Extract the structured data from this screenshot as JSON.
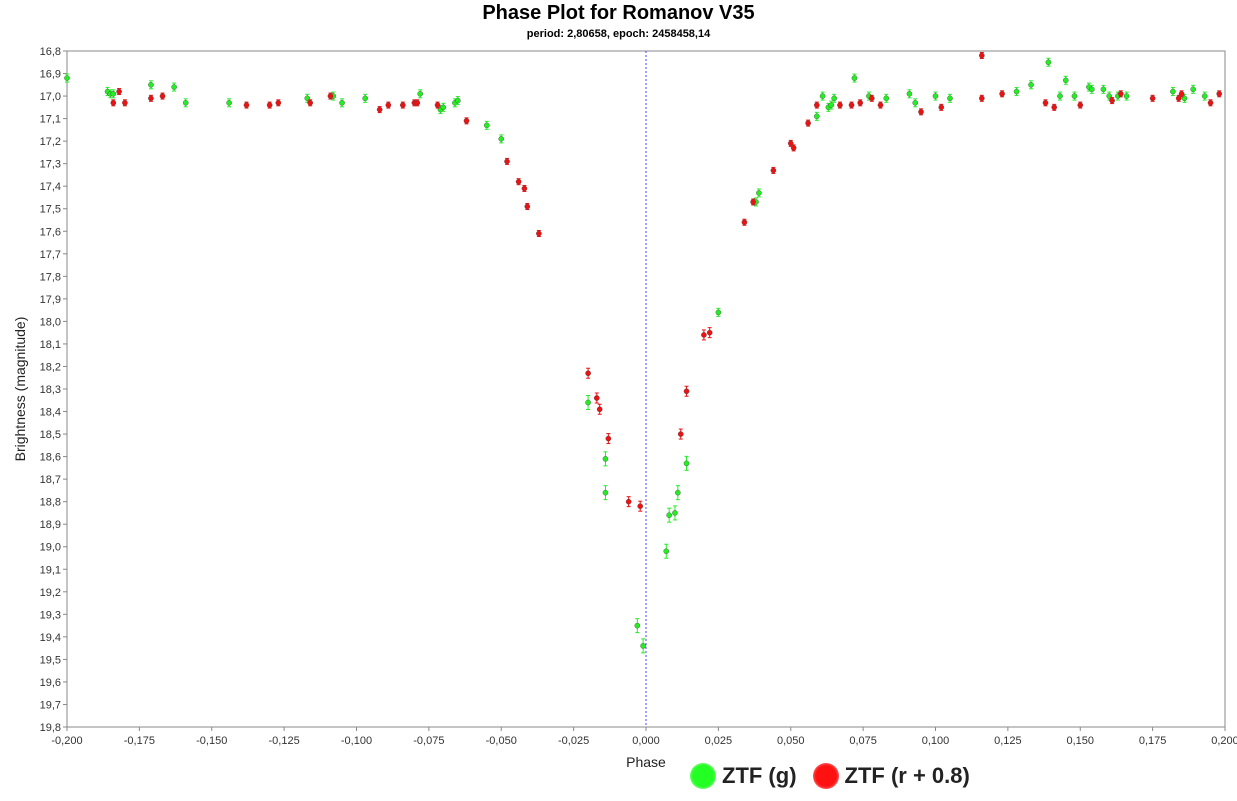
{
  "chart_data": {
    "type": "scatter",
    "title": "Phase Plot for Romanov V35",
    "subtitle": "period: 2,80658, epoch: 2458458,14",
    "xlabel": "Phase",
    "ylabel": "Brightness (magnitude)",
    "xlim": [
      -0.2,
      0.2
    ],
    "ylim": [
      16.8,
      19.8
    ],
    "y_inverted": true,
    "grid": false,
    "zero_line": "dashed-blue",
    "legend_placement": "bottom-center",
    "xticks": [
      "-0,200",
      "-0,175",
      "-0,150",
      "-0,125",
      "-0,100",
      "-0,075",
      "-0,050",
      "-0,025",
      "0,000",
      "0,025",
      "0,050",
      "0,075",
      "0,100",
      "0,125",
      "0,150",
      "0,175",
      "0,200"
    ],
    "yticks": [
      "16,8",
      "16,9",
      "17,0",
      "17,1",
      "17,2",
      "17,3",
      "17,4",
      "17,5",
      "17,6",
      "17,7",
      "17,8",
      "17,9",
      "18,0",
      "18,1",
      "18,2",
      "18,3",
      "18,4",
      "18,5",
      "18,6",
      "18,7",
      "18,8",
      "18,9",
      "19,0",
      "19,1",
      "19,2",
      "19,3",
      "19,4",
      "19,5",
      "19,6",
      "19,7",
      "19,8"
    ],
    "series": [
      {
        "name": "ZTF (g)",
        "color": "#22ee22",
        "points": [
          [
            -0.2,
            16.92
          ],
          [
            -0.186,
            16.98
          ],
          [
            -0.185,
            16.99
          ],
          [
            -0.184,
            16.99
          ],
          [
            -0.171,
            16.95
          ],
          [
            -0.163,
            16.96
          ],
          [
            -0.159,
            17.03
          ],
          [
            -0.144,
            17.03
          ],
          [
            -0.117,
            17.01
          ],
          [
            -0.108,
            17.0
          ],
          [
            -0.105,
            17.03
          ],
          [
            -0.097,
            17.01
          ],
          [
            -0.078,
            16.99
          ],
          [
            -0.071,
            17.06
          ],
          [
            -0.07,
            17.05
          ],
          [
            -0.066,
            17.03
          ],
          [
            -0.065,
            17.02
          ],
          [
            -0.055,
            17.13
          ],
          [
            -0.05,
            17.19
          ],
          [
            -0.02,
            18.36
          ],
          [
            -0.014,
            18.61
          ],
          [
            -0.014,
            18.76
          ],
          [
            -0.003,
            19.35
          ],
          [
            -0.001,
            19.44
          ],
          [
            0.007,
            19.02
          ],
          [
            0.008,
            18.86
          ],
          [
            0.01,
            18.85
          ],
          [
            0.011,
            18.76
          ],
          [
            0.014,
            18.63
          ],
          [
            0.025,
            17.96
          ],
          [
            0.038,
            17.47
          ],
          [
            0.039,
            17.43
          ],
          [
            0.059,
            17.09
          ],
          [
            0.061,
            17.0
          ],
          [
            0.063,
            17.05
          ],
          [
            0.064,
            17.04
          ],
          [
            0.065,
            17.01
          ],
          [
            0.072,
            16.92
          ],
          [
            0.077,
            17.0
          ],
          [
            0.083,
            17.01
          ],
          [
            0.091,
            16.99
          ],
          [
            0.093,
            17.03
          ],
          [
            0.1,
            17.0
          ],
          [
            0.105,
            17.01
          ],
          [
            0.128,
            16.98
          ],
          [
            0.133,
            16.95
          ],
          [
            0.139,
            16.85
          ],
          [
            0.143,
            17.0
          ],
          [
            0.145,
            16.93
          ],
          [
            0.148,
            17.0
          ],
          [
            0.153,
            16.96
          ],
          [
            0.154,
            16.97
          ],
          [
            0.158,
            16.97
          ],
          [
            0.16,
            17.0
          ],
          [
            0.163,
            17.0
          ],
          [
            0.166,
            17.0
          ],
          [
            0.182,
            16.98
          ],
          [
            0.186,
            17.01
          ],
          [
            0.189,
            16.97
          ],
          [
            0.193,
            17.0
          ]
        ]
      },
      {
        "name": "ZTF (r + 0.8)",
        "color": "#ee1111",
        "points": [
          [
            -0.184,
            17.03
          ],
          [
            -0.182,
            16.98
          ],
          [
            -0.18,
            17.03
          ],
          [
            -0.171,
            17.01
          ],
          [
            -0.167,
            17.0
          ],
          [
            -0.138,
            17.04
          ],
          [
            -0.13,
            17.04
          ],
          [
            -0.127,
            17.03
          ],
          [
            -0.116,
            17.03
          ],
          [
            -0.109,
            17.0
          ],
          [
            -0.092,
            17.06
          ],
          [
            -0.089,
            17.04
          ],
          [
            -0.084,
            17.04
          ],
          [
            -0.08,
            17.03
          ],
          [
            -0.079,
            17.03
          ],
          [
            -0.072,
            17.04
          ],
          [
            -0.062,
            17.11
          ],
          [
            -0.048,
            17.29
          ],
          [
            -0.044,
            17.38
          ],
          [
            -0.042,
            17.41
          ],
          [
            -0.041,
            17.49
          ],
          [
            -0.037,
            17.61
          ],
          [
            -0.02,
            18.23
          ],
          [
            -0.017,
            18.34
          ],
          [
            -0.016,
            18.39
          ],
          [
            -0.013,
            18.52
          ],
          [
            -0.006,
            18.8
          ],
          [
            -0.002,
            18.82
          ],
          [
            0.012,
            18.5
          ],
          [
            0.014,
            18.31
          ],
          [
            0.02,
            18.06
          ],
          [
            0.022,
            18.05
          ],
          [
            0.034,
            17.56
          ],
          [
            0.037,
            17.47
          ],
          [
            0.044,
            17.33
          ],
          [
            0.05,
            17.21
          ],
          [
            0.051,
            17.23
          ],
          [
            0.056,
            17.12
          ],
          [
            0.059,
            17.04
          ],
          [
            0.067,
            17.04
          ],
          [
            0.071,
            17.04
          ],
          [
            0.074,
            17.03
          ],
          [
            0.078,
            17.01
          ],
          [
            0.081,
            17.04
          ],
          [
            0.095,
            17.07
          ],
          [
            0.102,
            17.05
          ],
          [
            0.116,
            16.82
          ],
          [
            0.116,
            17.01
          ],
          [
            0.123,
            16.99
          ],
          [
            0.138,
            17.03
          ],
          [
            0.141,
            17.05
          ],
          [
            0.15,
            17.04
          ],
          [
            0.161,
            17.02
          ],
          [
            0.164,
            16.99
          ],
          [
            0.175,
            17.01
          ],
          [
            0.184,
            17.01
          ],
          [
            0.185,
            16.99
          ],
          [
            0.195,
            17.03
          ],
          [
            0.198,
            16.99
          ]
        ]
      }
    ],
    "legend": [
      {
        "label": "ZTF (g)",
        "color": "#22ee22"
      },
      {
        "label": "ZTF (r + 0.8)",
        "color": "#ee1111"
      }
    ]
  }
}
